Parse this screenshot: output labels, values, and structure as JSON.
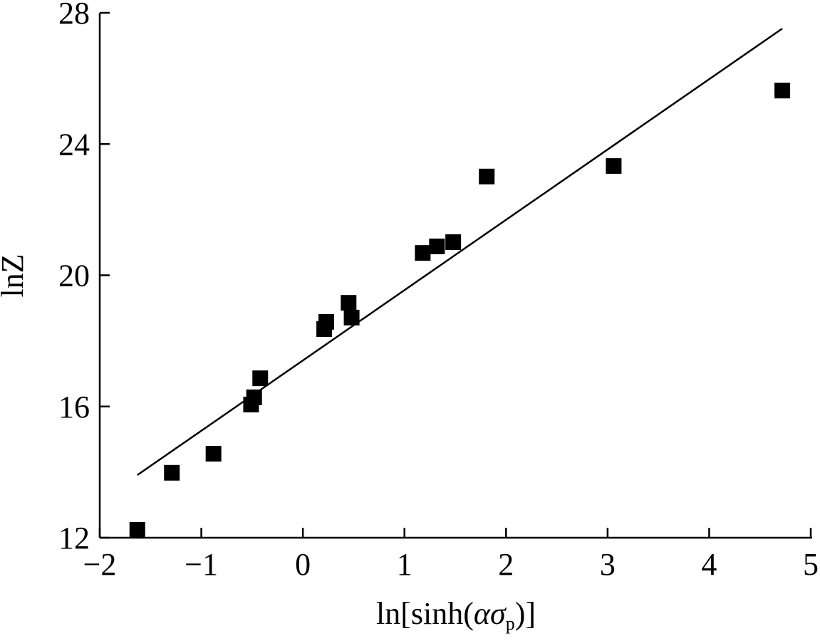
{
  "chart_data": {
    "type": "scatter",
    "xlabel": [
      "ln[sinh(",
      "ασ",
      "p",
      ")]"
    ],
    "ylabel": "lnZ",
    "xlim": [
      -2,
      5
    ],
    "ylim": [
      12,
      28
    ],
    "xticks": [
      {
        "value": -2,
        "label": "−2"
      },
      {
        "value": -1,
        "label": "−1"
      },
      0,
      1,
      2,
      3,
      4,
      5
    ],
    "yticks": [
      12,
      16,
      20,
      24,
      28
    ],
    "grid": false,
    "series": [
      {
        "type": "scatter",
        "color": "#000000",
        "x": [
          -1.63,
          -1.29,
          -0.88,
          -0.51,
          -0.48,
          -0.42,
          0.21,
          0.23,
          0.45,
          0.48,
          1.18,
          1.32,
          1.48,
          1.81,
          3.06,
          4.72
        ],
        "values": [
          12.24,
          13.98,
          14.56,
          16.06,
          16.28,
          16.86,
          18.36,
          18.58,
          19.16,
          18.71,
          20.68,
          20.88,
          21.01,
          23.01,
          23.33,
          25.63
        ]
      },
      {
        "type": "line",
        "color": "#000000",
        "x": [
          -1.63,
          4.72
        ],
        "values": [
          13.91,
          27.52
        ]
      }
    ]
  }
}
